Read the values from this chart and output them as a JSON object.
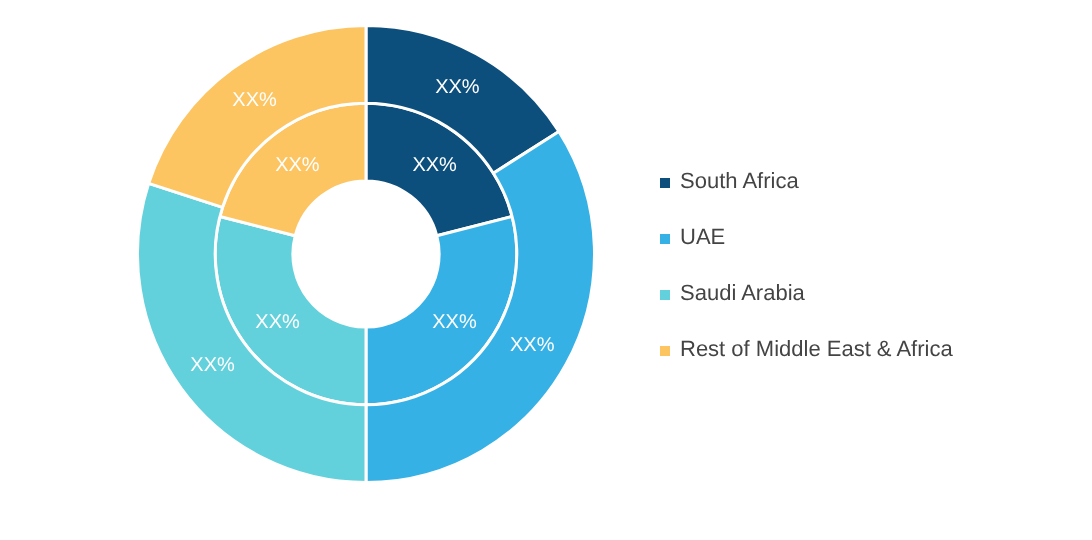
{
  "chart_data": {
    "type": "donut",
    "categories": [
      "South Africa",
      "UAE",
      "Saudi Arabia",
      "Rest of Middle East & Africa"
    ],
    "colors": [
      "#0d4f7c",
      "#36b1e6",
      "#62d1dc",
      "#fdc462"
    ],
    "series": [
      {
        "values": [
          16,
          34,
          30,
          20
        ],
        "value_labels": [
          "XX%",
          "XX%",
          "XX%",
          "XX%"
        ]
      },
      {
        "values": [
          21,
          29,
          29,
          21
        ],
        "value_labels": [
          "XX%",
          "XX%",
          "XX%",
          "XX%"
        ]
      }
    ],
    "legend": "right"
  }
}
